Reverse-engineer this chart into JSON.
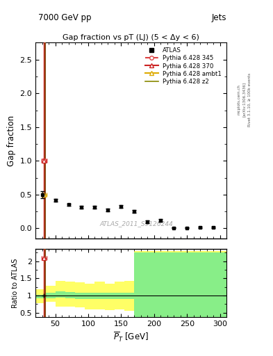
{
  "title_top_left": "7000 GeV pp",
  "title_top_right": "Jets",
  "main_title": "Gap fraction vs pT (LJ) (5 < Δy < 6)",
  "watermark": "ATLAS_2011_S9126244",
  "right_label_top": "Rivet 3.1.10, ≥ 100k events",
  "right_label_mid": "[arXiv:1306.3436]",
  "right_label_bot": "mcplots.cern.ch",
  "atlas_x": [
    30,
    50,
    70,
    90,
    110,
    130,
    150,
    170,
    190,
    210,
    230,
    250,
    270,
    290
  ],
  "atlas_y": [
    0.5,
    0.42,
    0.35,
    0.31,
    0.31,
    0.27,
    0.32,
    0.25,
    0.1,
    0.12,
    0.01,
    0.01,
    0.02,
    0.02
  ],
  "atlas_yerr": [
    0.05,
    0.02,
    0.02,
    0.02,
    0.02,
    0.02,
    0.02,
    0.02,
    0.02,
    0.02,
    0.01,
    0.01,
    0.01,
    0.01
  ],
  "vline_x": 33,
  "vline_color_red": "#cc2222",
  "vline_color_brown": "#8B4513",
  "py345_color": "#dd4444",
  "py370_color": "#cc2222",
  "pyambt1_color": "#ddaa00",
  "pyz2_color": "#888800",
  "main_ylim": [
    -0.15,
    2.75
  ],
  "main_yticks": [
    0.0,
    0.5,
    1.0,
    1.5,
    2.0,
    2.5
  ],
  "ratio_ylim": [
    0.38,
    2.35
  ],
  "ratio_yticks": [
    0.5,
    1.0,
    1.5,
    2.0
  ],
  "xlim": [
    20,
    310
  ],
  "yellow_steps_x": [
    20,
    35,
    50,
    65,
    80,
    95,
    110,
    125,
    140,
    155,
    170,
    180,
    195,
    240,
    310
  ],
  "yellow_bot": [
    0.78,
    0.82,
    0.68,
    0.68,
    0.65,
    0.6,
    0.6,
    0.57,
    0.6,
    0.55,
    0.38,
    0.38,
    0.38,
    0.38
  ],
  "yellow_top": [
    1.18,
    1.28,
    1.42,
    1.4,
    1.38,
    1.35,
    1.4,
    1.35,
    1.4,
    1.42,
    2.3,
    2.3,
    2.3,
    2.3
  ],
  "green_steps_x": [
    20,
    35,
    50,
    65,
    80,
    95,
    110,
    125,
    140,
    155,
    170,
    180,
    240,
    310
  ],
  "green_bot": [
    0.92,
    0.93,
    0.95,
    0.92,
    0.9,
    0.9,
    0.91,
    0.89,
    0.91,
    0.9,
    0.38,
    0.38,
    0.38
  ],
  "green_top": [
    1.03,
    1.08,
    1.12,
    1.1,
    1.08,
    1.08,
    1.08,
    1.08,
    1.08,
    1.08,
    2.25,
    2.25,
    2.25
  ]
}
